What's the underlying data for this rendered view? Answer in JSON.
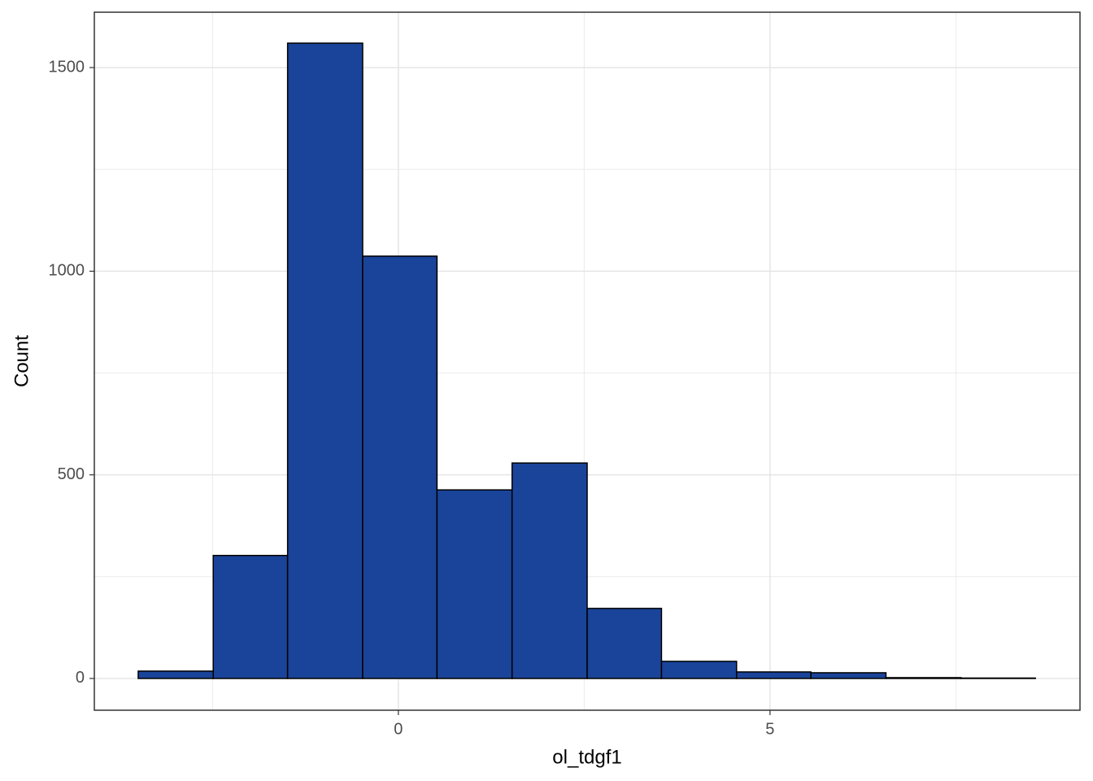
{
  "chart_data": {
    "type": "histogram",
    "x_label": "ol_tdgf1",
    "y_label": "Count",
    "bins": [
      -3.5,
      -2.49,
      -1.49,
      -0.48,
      0.52,
      1.53,
      2.54,
      3.54,
      4.55,
      5.55,
      6.56,
      7.57,
      8.57
    ],
    "values": [
      18,
      302,
      1560,
      1037,
      463,
      529,
      172,
      42,
      16,
      14,
      2,
      1
    ],
    "color": "#1a4499",
    "xlim": [
      -4.09,
      9.17
    ],
    "ylim": [
      -78,
      1636
    ],
    "xticks": [
      0,
      5
    ],
    "yticks": [
      0,
      500,
      1000,
      1500
    ],
    "x_minor_grid": [
      -2.5,
      2.5,
      7.5
    ],
    "y_minor_grid": [
      250,
      750,
      1250
    ],
    "grid": true
  }
}
